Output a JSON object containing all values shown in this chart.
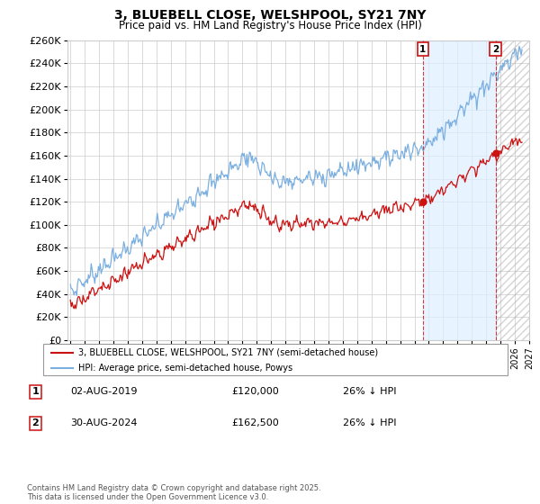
{
  "title": "3, BLUEBELL CLOSE, WELSHPOOL, SY21 7NY",
  "subtitle": "Price paid vs. HM Land Registry's House Price Index (HPI)",
  "x_start_year": 1995,
  "x_end_year": 2027,
  "y_min": 0,
  "y_max": 260000,
  "y_tick_step": 20000,
  "hpi_color": "#7aafe0",
  "price_color": "#cc1111",
  "grid_color": "#cccccc",
  "background_color": "#ffffff",
  "sale1_year": 2019.58,
  "sale1_price": 120000,
  "sale2_year": 2024.66,
  "sale2_price": 162500,
  "sale1_date": "02-AUG-2019",
  "sale2_date": "30-AUG-2024",
  "sale1_hpi_diff": "26% ↓ HPI",
  "sale2_hpi_diff": "26% ↓ HPI",
  "legend_property": "3, BLUEBELL CLOSE, WELSHPOOL, SY21 7NY (semi-detached house)",
  "legend_hpi": "HPI: Average price, semi-detached house, Powys",
  "footnote": "Contains HM Land Registry data © Crown copyright and database right 2025.\nThis data is licensed under the Open Government Licence v3.0.",
  "span_color": "#ddeeff",
  "span_alpha": 0.7,
  "hatch_color": "#cccccc"
}
